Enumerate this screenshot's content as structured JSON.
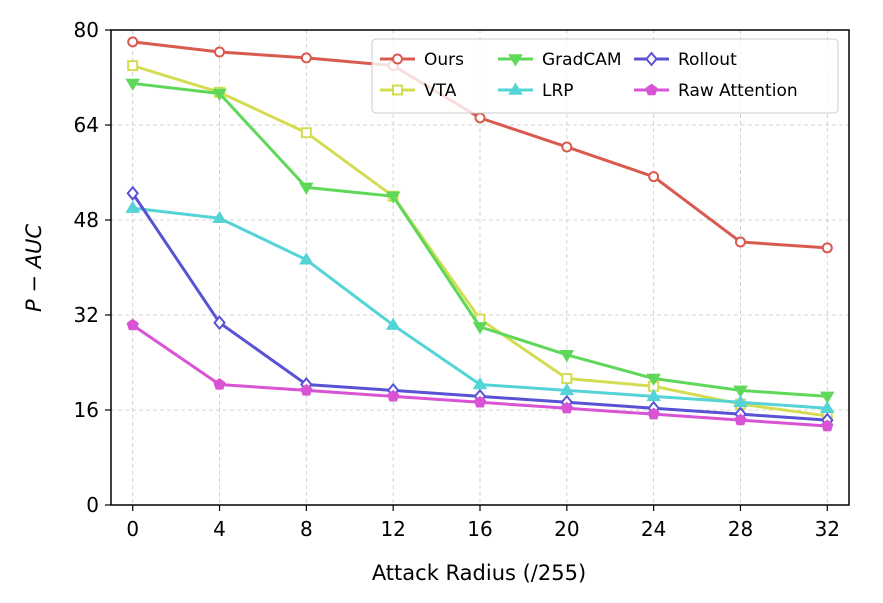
{
  "chart_data": {
    "type": "line",
    "title": "",
    "xlabel": "Attack Radius (/255)",
    "ylabel": "P − AUC",
    "x": [
      0,
      4,
      8,
      12,
      16,
      20,
      24,
      28,
      32
    ],
    "x_ticks": [
      "0",
      "4",
      "8",
      "12",
      "16",
      "20",
      "24",
      "28",
      "32"
    ],
    "y_ticks": [
      "0",
      "16",
      "32",
      "48",
      "64",
      "80"
    ],
    "xlim": [
      -1,
      33
    ],
    "ylim": [
      0,
      80
    ],
    "grid": true,
    "legend_position": "top-right",
    "series": [
      {
        "name": "Ours",
        "color": "#d95a4e",
        "marker": "circle",
        "values": [
          78,
          76.3,
          75.3,
          74,
          65.2,
          60.3,
          55.3,
          44.3,
          43.3
        ]
      },
      {
        "name": "VTA",
        "color": "#d4dc52",
        "marker": "square",
        "values": [
          74,
          69.5,
          62.7,
          52,
          31.3,
          21.3,
          20,
          17,
          15
        ]
      },
      {
        "name": "GradCAM",
        "color": "#5fd85a",
        "marker": "triangle-down",
        "values": [
          71,
          69.3,
          53.5,
          52,
          30,
          25.3,
          21.3,
          19.3,
          18.3
        ]
      },
      {
        "name": "LRP",
        "color": "#55d4d8",
        "marker": "triangle-up",
        "values": [
          50,
          48.3,
          41.3,
          30.3,
          20.3,
          19.3,
          18.3,
          17.3,
          16.3
        ]
      },
      {
        "name": "Rollout",
        "color": "#5a52d4",
        "marker": "diamond",
        "values": [
          52.5,
          30.7,
          20.3,
          19.3,
          18.3,
          17.3,
          16.3,
          15.3,
          14.3
        ]
      },
      {
        "name": "Raw Attention",
        "color": "#d854d4",
        "marker": "pentagon",
        "values": [
          30.3,
          20.3,
          19.3,
          18.3,
          17.3,
          16.3,
          15.3,
          14.3,
          13.3
        ]
      }
    ]
  }
}
